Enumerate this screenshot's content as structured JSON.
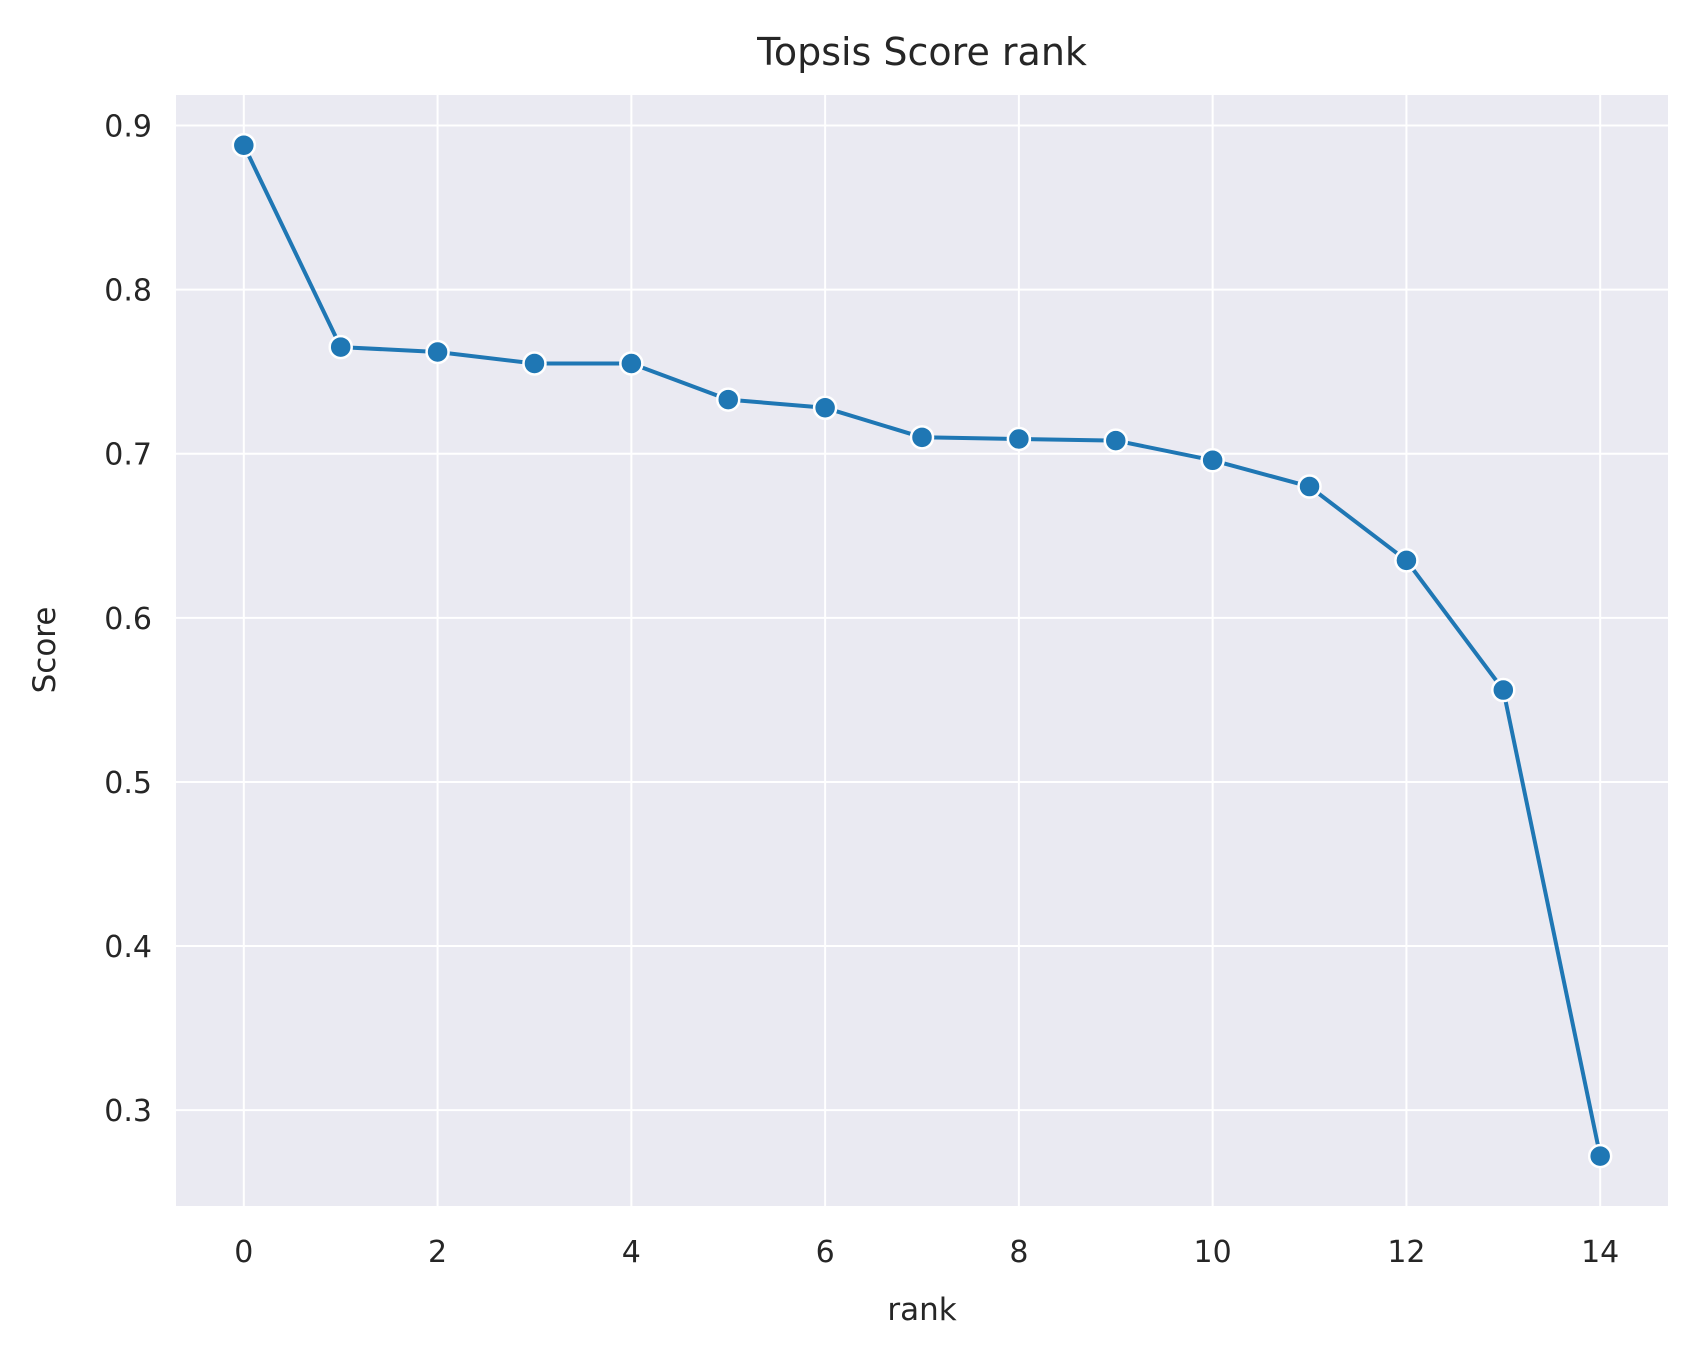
{
  "chart_data": {
    "type": "line",
    "title": "Topsis Score rank",
    "xlabel": "rank",
    "ylabel": "Score",
    "x": [
      0,
      1,
      2,
      3,
      4,
      5,
      6,
      7,
      8,
      9,
      10,
      11,
      12,
      13,
      14
    ],
    "series": [
      {
        "values": [
          0.888,
          0.765,
          0.762,
          0.755,
          0.755,
          0.733,
          0.728,
          0.71,
          0.709,
          0.708,
          0.696,
          0.68,
          0.635,
          0.556,
          0.272
        ]
      }
    ],
    "xlim": [
      -0.7,
      14.7
    ],
    "ylim": [
      0.2416,
      0.9186
    ],
    "xticks": [
      0,
      2,
      4,
      6,
      8,
      10,
      12,
      14
    ],
    "xtick_labels": [
      "0",
      "2",
      "4",
      "6",
      "8",
      "10",
      "12",
      "14"
    ],
    "yticks": [
      0.3,
      0.4,
      0.5,
      0.6,
      0.7,
      0.8,
      0.9
    ],
    "ytick_labels": [
      "0.3",
      "0.4",
      "0.5",
      "0.6",
      "0.7",
      "0.8",
      "0.9"
    ],
    "grid": true,
    "marker": "circle",
    "colors": {
      "line": "#1f77b4",
      "marker_edge": "#ffffff",
      "background": "#eaeaf2",
      "grid": "#ffffff"
    }
  }
}
